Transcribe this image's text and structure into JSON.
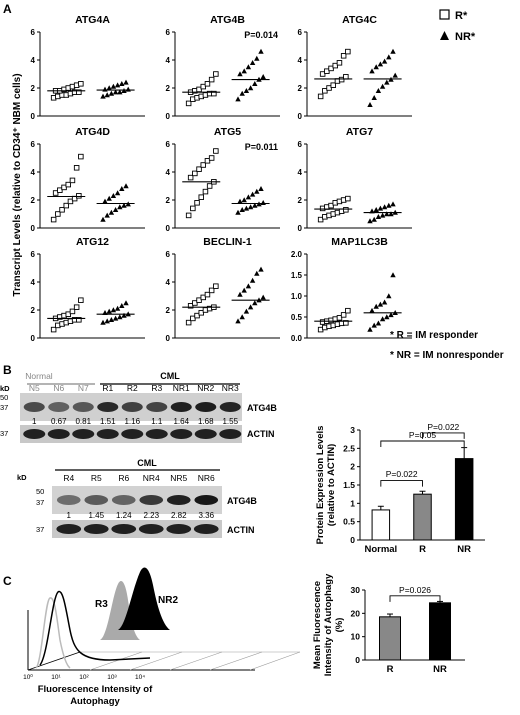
{
  "panel_labels": {
    "a": "A",
    "b": "B",
    "c": "C"
  },
  "panel_a": {
    "ylabel": "Transcript Levels (relative to CD34⁺ NBM cells)",
    "legend": {
      "r": "R*",
      "nr": "NR*"
    },
    "footnotes": [
      "* R = IM responder",
      "* NR = IM nonresponder"
    ],
    "yticks_default": [
      "0",
      "2",
      "4",
      "6"
    ],
    "yticks_map": [
      "0.0",
      "0.5",
      "1.0",
      "1.5",
      "2.0"
    ],
    "scatter_titles": [
      "ATG4A",
      "ATG4B",
      "ATG4C",
      "ATG4D",
      "ATG5",
      "ATG7",
      "ATG12",
      "BECLIN-1",
      "MAP1LC3B"
    ],
    "pvalues": {
      "ATG4B": "P=0.014",
      "ATG5": "P=0.011"
    }
  },
  "chart_data": [
    {
      "type": "scatter",
      "title": "ATG4A",
      "ylim": [
        0,
        6
      ],
      "series": [
        {
          "name": "R*",
          "values": [
            1.3,
            1.4,
            1.5,
            1.5,
            1.6,
            1.7,
            1.7,
            1.8,
            1.8,
            1.9,
            2.0,
            2.1,
            2.2,
            2.3
          ]
        },
        {
          "name": "NR*",
          "values": [
            1.4,
            1.5,
            1.6,
            1.7,
            1.7,
            1.8,
            1.9,
            1.9,
            2.0,
            2.1,
            2.2,
            2.3,
            2.4
          ]
        }
      ],
      "means": [
        1.8,
        1.85
      ]
    },
    {
      "type": "scatter",
      "title": "ATG4B",
      "ylim": [
        0,
        6
      ],
      "pvalue": "P=0.014",
      "series": [
        {
          "name": "R*",
          "values": [
            0.9,
            1.2,
            1.3,
            1.4,
            1.5,
            1.6,
            1.6,
            1.7,
            1.8,
            1.9,
            2.1,
            2.3,
            2.6,
            3.0
          ]
        },
        {
          "name": "NR*",
          "values": [
            1.2,
            1.6,
            1.8,
            2.0,
            2.3,
            2.6,
            2.8,
            3.0,
            3.2,
            3.5,
            3.8,
            4.1,
            4.6
          ]
        }
      ],
      "means": [
        1.7,
        2.6
      ]
    },
    {
      "type": "scatter",
      "title": "ATG4C",
      "ylim": [
        0,
        6
      ],
      "series": [
        {
          "name": "R*",
          "values": [
            1.4,
            1.8,
            2.0,
            2.2,
            2.5,
            2.6,
            2.8,
            3.0,
            3.2,
            3.4,
            3.6,
            3.8,
            4.3,
            4.6
          ]
        },
        {
          "name": "NR*",
          "values": [
            0.8,
            1.3,
            1.8,
            2.1,
            2.4,
            2.6,
            2.9,
            3.2,
            3.5,
            3.7,
            3.9,
            4.2,
            4.6
          ]
        }
      ],
      "means": [
        2.65,
        2.65
      ]
    },
    {
      "type": "scatter",
      "title": "ATG4D",
      "ylim": [
        0,
        6
      ],
      "series": [
        {
          "name": "R*",
          "values": [
            0.6,
            1.0,
            1.3,
            1.6,
            1.9,
            2.1,
            2.3,
            2.5,
            2.7,
            2.9,
            3.1,
            3.4,
            4.3,
            5.1
          ]
        },
        {
          "name": "NR*",
          "values": [
            0.6,
            0.9,
            1.1,
            1.3,
            1.5,
            1.6,
            1.7,
            1.9,
            2.1,
            2.3,
            2.5,
            2.8,
            3.0
          ]
        }
      ],
      "means": [
        2.25,
        1.75
      ]
    },
    {
      "type": "scatter",
      "title": "ATG5",
      "ylim": [
        0,
        6
      ],
      "pvalue": "P=0.011",
      "series": [
        {
          "name": "R*",
          "values": [
            0.9,
            1.4,
            1.8,
            2.2,
            2.6,
            3.0,
            3.3,
            3.6,
            3.9,
            4.2,
            4.5,
            4.8,
            5.0,
            5.5
          ]
        },
        {
          "name": "NR*",
          "values": [
            1.1,
            1.3,
            1.4,
            1.5,
            1.6,
            1.7,
            1.8,
            1.9,
            2.0,
            2.2,
            2.4,
            2.6,
            2.8
          ]
        }
      ],
      "means": [
        3.3,
        1.75
      ]
    },
    {
      "type": "scatter",
      "title": "ATG7",
      "ylim": [
        0,
        6
      ],
      "series": [
        {
          "name": "R*",
          "values": [
            0.6,
            0.8,
            0.9,
            1.0,
            1.1,
            1.2,
            1.3,
            1.4,
            1.5,
            1.6,
            1.8,
            1.9,
            2.0,
            2.1
          ]
        },
        {
          "name": "NR*",
          "values": [
            0.5,
            0.6,
            0.8,
            0.9,
            1.0,
            1.0,
            1.1,
            1.2,
            1.3,
            1.4,
            1.5,
            1.6,
            1.7
          ]
        }
      ],
      "means": [
        1.35,
        1.1
      ]
    },
    {
      "type": "scatter",
      "title": "ATG12",
      "ylim": [
        0,
        6
      ],
      "series": [
        {
          "name": "R*",
          "values": [
            0.6,
            0.9,
            1.0,
            1.1,
            1.2,
            1.3,
            1.3,
            1.4,
            1.5,
            1.6,
            1.7,
            1.9,
            2.2,
            2.7
          ]
        },
        {
          "name": "NR*",
          "values": [
            1.1,
            1.2,
            1.3,
            1.4,
            1.5,
            1.6,
            1.7,
            1.8,
            1.9,
            2.0,
            2.1,
            2.3,
            2.5
          ]
        }
      ],
      "means": [
        1.4,
        1.7
      ]
    },
    {
      "type": "scatter",
      "title": "BECLIN-1",
      "ylim": [
        0,
        6
      ],
      "series": [
        {
          "name": "R*",
          "values": [
            1.1,
            1.4,
            1.6,
            1.8,
            2.0,
            2.1,
            2.2,
            2.3,
            2.5,
            2.7,
            2.9,
            3.1,
            3.4,
            3.7
          ]
        },
        {
          "name": "NR*",
          "values": [
            1.2,
            1.5,
            1.9,
            2.2,
            2.5,
            2.7,
            2.9,
            3.1,
            3.4,
            3.7,
            4.1,
            4.6,
            4.9
          ]
        }
      ],
      "means": [
        2.2,
        2.7
      ]
    },
    {
      "type": "scatter",
      "title": "MAP1LC3B",
      "ylim": [
        0,
        2.0
      ],
      "series": [
        {
          "name": "R*",
          "values": [
            0.2,
            0.25,
            0.28,
            0.3,
            0.33,
            0.35,
            0.36,
            0.38,
            0.4,
            0.42,
            0.45,
            0.48,
            0.55,
            0.65
          ]
        },
        {
          "name": "NR*",
          "values": [
            0.2,
            0.3,
            0.35,
            0.45,
            0.5,
            0.55,
            0.6,
            0.65,
            0.75,
            0.8,
            0.85,
            1.0,
            1.5
          ]
        }
      ],
      "means": [
        0.4,
        0.6
      ]
    },
    {
      "type": "bar",
      "title": "Protein Expression Levels",
      "categories": [
        "Normal",
        "R",
        "NR"
      ],
      "values": [
        0.82,
        1.25,
        2.22
      ],
      "errors": [
        0.1,
        0.08,
        0.3
      ],
      "colors": [
        "#ffffff",
        "#888888",
        "#000000"
      ],
      "ylabel": "Protein Expression Levels (relative to ACTIN)",
      "yticks": [
        "0",
        "0.5",
        "1",
        "1.5",
        "2",
        "2.5",
        "3"
      ],
      "ylim": [
        0,
        3
      ],
      "comparisons": [
        {
          "label": "P=0.022",
          "pair": [
            "Normal",
            "R"
          ]
        },
        {
          "label": "P=0.05",
          "pair": [
            "Normal",
            "NR"
          ]
        },
        {
          "label": "P=0.022",
          "pair": [
            "R",
            "NR"
          ]
        }
      ]
    },
    {
      "type": "bar",
      "title": "Mean Fluorescence Intensity of Autophagy",
      "categories": [
        "R",
        "NR"
      ],
      "values": [
        18.5,
        24.5
      ],
      "errors": [
        1.2,
        0.6
      ],
      "colors": [
        "#888888",
        "#000000"
      ],
      "ylabel": "Mean Fluorescence Intensity of Autophagy (%)",
      "yticks": [
        "0",
        "10",
        "20",
        "30"
      ],
      "ylim": [
        0,
        30
      ],
      "comparisons": [
        {
          "label": "P=0.026",
          "pair": [
            "R",
            "NR"
          ]
        }
      ]
    }
  ],
  "panel_b": {
    "blot1": {
      "group_normal": "Normal",
      "group_cml": "CML",
      "lanes": [
        "N5",
        "N6",
        "N7",
        "R1",
        "R2",
        "R3",
        "NR1",
        "NR2",
        "NR3"
      ],
      "quant": [
        "1",
        "0.67",
        "0.81",
        "1.51",
        "1.16",
        "1.1",
        "1.64",
        "1.68",
        "1.55"
      ],
      "band1": "ATG4B",
      "band2": "ACTIN",
      "kd_label": "kD",
      "markers": [
        "50",
        "37"
      ],
      "marker2": "37"
    },
    "blot2": {
      "group_cml": "CML",
      "lanes": [
        "R4",
        "R5",
        "R6",
        "NR4",
        "NR5",
        "NR6"
      ],
      "quant": [
        "1",
        "1.45",
        "1.24",
        "2.23",
        "2.82",
        "3.36"
      ],
      "band1": "ATG4B",
      "band2": "ACTIN",
      "kd_label": "kD",
      "markers": [
        "50",
        "37"
      ],
      "marker2": "37"
    }
  },
  "panel_c": {
    "flow_label_r": "R3",
    "flow_label_nr": "NR2",
    "xlabel": [
      "Fluorescence Intensity of",
      "Autophagy"
    ],
    "xticks": [
      "10⁰",
      "10¹",
      "10²",
      "10³",
      "10⁴"
    ]
  }
}
